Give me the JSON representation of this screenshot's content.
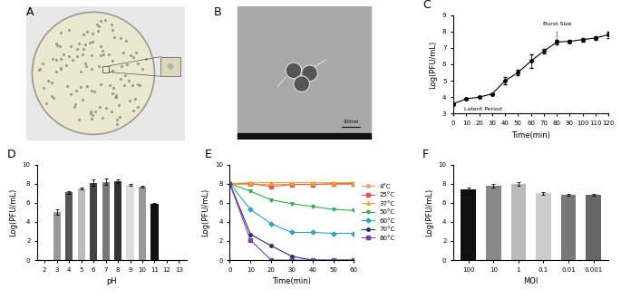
{
  "images": [
    {
      "title": "A"
    },
    {
      "title": "B",
      "scale_bar": "100nm"
    }
  ],
  "chart_data": [
    {
      "type": "line",
      "title": "C",
      "xlabel": "Time(min)",
      "ylabel": "Log(PFU/mL)",
      "x": [
        0,
        10,
        20,
        30,
        40,
        50,
        60,
        70,
        80,
        90,
        100,
        110,
        120
      ],
      "values": [
        3.6,
        3.9,
        4.0,
        4.2,
        5.0,
        5.5,
        6.2,
        6.8,
        7.35,
        7.4,
        7.5,
        7.6,
        7.8
      ],
      "errors": [
        0.1,
        0.05,
        0.05,
        0.05,
        0.2,
        0.15,
        0.4,
        0.15,
        0.15,
        0.1,
        0.1,
        0.1,
        0.2
      ],
      "color": "#000000",
      "marker": "circle",
      "annotations": [
        "Latent Period",
        "Burst Size"
      ],
      "xlim": [
        0,
        120
      ],
      "xticks": [
        0,
        10,
        20,
        30,
        40,
        50,
        60,
        70,
        80,
        90,
        100,
        110,
        120
      ],
      "ylim": [
        3,
        9
      ],
      "yticks": [
        3,
        4,
        5,
        6,
        7,
        8,
        9
      ]
    },
    {
      "type": "bar",
      "title": "D",
      "xlabel": "pH",
      "ylabel": "Log(PFU/mL)",
      "categories": [
        "2",
        "3",
        "4",
        "5",
        "6",
        "7",
        "8",
        "9",
        "10",
        "11",
        "12",
        "13"
      ],
      "values": [
        0,
        5.0,
        7.1,
        7.5,
        8.1,
        8.2,
        8.25,
        7.9,
        7.7,
        5.9,
        0,
        0
      ],
      "errors": [
        0,
        0.3,
        0.15,
        0.1,
        0.3,
        0.3,
        0.15,
        0.1,
        0.1,
        0.1,
        0,
        0
      ],
      "colors": [
        "#888888",
        "#999999",
        "#555555",
        "#bbbbbb",
        "#444444",
        "#777777",
        "#333333",
        "#dddddd",
        "#999999",
        "#111111",
        "#888888",
        "#888888"
      ],
      "ylim": [
        0,
        10
      ],
      "yticks": [
        0,
        2,
        4,
        6,
        8,
        10
      ]
    },
    {
      "type": "line",
      "title": "E",
      "xlabel": "Time(min)",
      "ylabel": "Log(PFU/mL)",
      "x": [
        0,
        10,
        20,
        30,
        40,
        50,
        60
      ],
      "series": [
        {
          "name": "4°C",
          "color": "#f4a060",
          "marker": "circle",
          "values": [
            8,
            8,
            8,
            8,
            8,
            8,
            8
          ]
        },
        {
          "name": "25°C",
          "color": "#e8574f",
          "marker": "square",
          "values": [
            8,
            8,
            7.7,
            7.9,
            7.9,
            8,
            8
          ]
        },
        {
          "name": "37°C",
          "color": "#f5a623",
          "marker": "triangle",
          "values": [
            8,
            8.1,
            8.1,
            8.1,
            8.1,
            8.1,
            8.1
          ]
        },
        {
          "name": "50°C",
          "color": "#2cb34a",
          "marker": "triangle_down",
          "values": [
            8,
            7.2,
            6.3,
            5.9,
            5.6,
            5.3,
            5.2
          ]
        },
        {
          "name": "60°C",
          "color": "#2ba5c4",
          "marker": "diamond",
          "values": [
            8,
            5.3,
            3.8,
            2.9,
            2.9,
            2.8,
            2.8
          ]
        },
        {
          "name": "70°C",
          "color": "#2c2c7a",
          "marker": "circle",
          "values": [
            8,
            2.7,
            1.5,
            0.4,
            0,
            0,
            0
          ]
        },
        {
          "name": "80°C",
          "color": "#7b3fa0",
          "marker": "square",
          "values": [
            8,
            2.1,
            0,
            0,
            0,
            0,
            0
          ]
        }
      ],
      "legend": "right",
      "xlim": [
        0,
        60
      ],
      "xticks": [
        0,
        10,
        20,
        30,
        40,
        50,
        60
      ],
      "ylim": [
        0,
        10
      ],
      "yticks": [
        0,
        2,
        4,
        6,
        8,
        10
      ]
    },
    {
      "type": "bar",
      "title": "F",
      "xlabel": "MOI",
      "ylabel": "Log(PFU/mL)",
      "categories": [
        "100",
        "10",
        "1",
        "0.1",
        "0.01",
        "0.001"
      ],
      "values": [
        7.4,
        7.8,
        8.0,
        7.0,
        6.8,
        6.8
      ],
      "errors": [
        0.15,
        0.2,
        0.2,
        0.15,
        0.1,
        0.1
      ],
      "colors": [
        "#111111",
        "#888888",
        "#bbbbbb",
        "#cccccc",
        "#777777",
        "#666666"
      ],
      "ylim": [
        0,
        10
      ],
      "yticks": [
        0,
        2,
        4,
        6,
        8,
        10
      ]
    }
  ]
}
